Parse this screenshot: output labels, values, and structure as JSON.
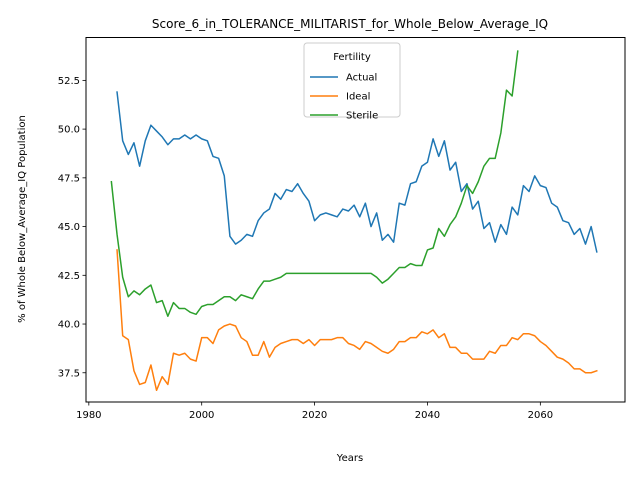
{
  "chart_data": {
    "type": "line",
    "title": "Score_6_in_TOLERANCE_MILITARIST_for_Whole_Below_Average_IQ",
    "xlabel": "Years",
    "ylabel": "% of Whole Below_Average_IQ Population",
    "xlim": [
      1979.5,
      2075
    ],
    "ylim": [
      36.0,
      54.7
    ],
    "xticks": [
      1980,
      2000,
      2020,
      2040,
      2060
    ],
    "xtick_labels": [
      "1980",
      "2000",
      "2020",
      "2040",
      "2060"
    ],
    "yticks": [
      37.5,
      40.0,
      42.5,
      45.0,
      47.5,
      50.0,
      52.5
    ],
    "ytick_labels": [
      "37.5",
      "40.0",
      "42.5",
      "45.0",
      "47.5",
      "50.0",
      "52.5"
    ],
    "legend": {
      "title": "Fertility",
      "position": "top-center"
    },
    "series": [
      {
        "name": "Actual",
        "color": "#1f77b4",
        "x_start": 1985,
        "values": [
          51.9,
          49.4,
          48.7,
          49.3,
          48.1,
          49.4,
          50.2,
          49.9,
          49.6,
          49.2,
          49.5,
          49.5,
          49.7,
          49.5,
          49.7,
          49.5,
          49.4,
          48.6,
          48.5,
          47.6,
          44.5,
          44.1,
          44.3,
          44.6,
          44.5,
          45.3,
          45.7,
          45.9,
          46.7,
          46.4,
          46.9,
          46.8,
          47.2,
          46.7,
          46.3,
          45.3,
          45.6,
          45.7,
          45.6,
          45.5,
          45.9,
          45.8,
          46.1,
          45.5,
          46.2,
          45.0,
          45.7,
          44.3,
          44.6,
          44.2,
          46.2,
          46.1,
          47.2,
          47.3,
          48.1,
          48.3,
          49.5,
          48.6,
          49.4,
          47.9,
          48.3,
          46.8,
          47.2,
          45.9,
          46.3,
          44.9,
          45.2,
          44.2,
          45.1,
          44.6,
          46.0,
          45.6,
          47.1,
          46.8,
          47.6,
          47.1,
          47.0,
          46.2,
          46.0,
          45.3,
          45.2,
          44.6,
          44.9,
          44.1,
          45.0,
          43.7
        ]
      },
      {
        "name": "Ideal",
        "color": "#ff7f0e",
        "x_start": 1985,
        "values": [
          43.8,
          39.4,
          39.2,
          37.6,
          36.9,
          37.0,
          37.9,
          36.6,
          37.3,
          36.9,
          38.5,
          38.4,
          38.5,
          38.2,
          38.1,
          39.3,
          39.3,
          39.0,
          39.7,
          39.9,
          40.0,
          39.9,
          39.3,
          39.1,
          38.4,
          38.4,
          39.1,
          38.3,
          38.8,
          39.0,
          39.1,
          39.2,
          39.2,
          39.0,
          39.2,
          38.9,
          39.2,
          39.2,
          39.2,
          39.3,
          39.3,
          39.0,
          38.9,
          38.7,
          39.1,
          39.0,
          38.8,
          38.6,
          38.5,
          38.7,
          39.1,
          39.1,
          39.3,
          39.3,
          39.6,
          39.5,
          39.7,
          39.3,
          39.5,
          38.8,
          38.8,
          38.5,
          38.5,
          38.2,
          38.2,
          38.2,
          38.6,
          38.5,
          38.9,
          38.9,
          39.3,
          39.2,
          39.5,
          39.5,
          39.4,
          39.1,
          38.9,
          38.6,
          38.3,
          38.2,
          38.0,
          37.7,
          37.7,
          37.5,
          37.5,
          37.6
        ]
      },
      {
        "name": "Sterile",
        "color": "#2ca02c",
        "x_start": 1984,
        "values": [
          47.3,
          44.6,
          42.4,
          41.4,
          41.7,
          41.5,
          41.8,
          42.0,
          41.1,
          41.2,
          40.4,
          41.1,
          40.8,
          40.8,
          40.6,
          40.5,
          40.9,
          41.0,
          41.0,
          41.2,
          41.4,
          41.4,
          41.2,
          41.5,
          41.4,
          41.3,
          41.8,
          42.2,
          42.2,
          42.3,
          42.4,
          42.6,
          42.6,
          42.6,
          42.6,
          42.6,
          42.6,
          42.6,
          42.6,
          42.6,
          42.6,
          42.6,
          42.6,
          42.6,
          42.6,
          42.6,
          42.6,
          42.4,
          42.1,
          42.3,
          42.6,
          42.9,
          42.9,
          43.1,
          43.0,
          43.0,
          43.8,
          43.9,
          44.9,
          44.5,
          45.1,
          45.5,
          46.2,
          47.1,
          46.7,
          47.3,
          48.1,
          48.5,
          48.5,
          49.8,
          52.0,
          51.7,
          54.0
        ]
      }
    ]
  }
}
